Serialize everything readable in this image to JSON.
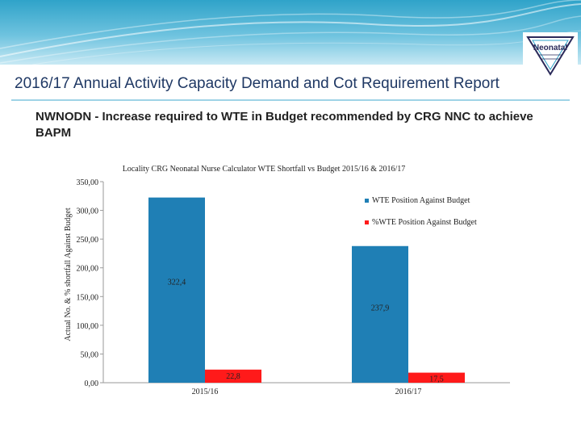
{
  "slide": {
    "title": "2016/17 Annual Activity Capacity Demand and Cot Requirement Report",
    "subtitle": "NWNODN - Increase required to WTE in Budget recommended by CRG NNC to achieve BAPM"
  },
  "logo": {
    "icon": "neonatal-network-logo",
    "text": "Neonatal"
  },
  "colors": {
    "header": "#2fa3c9",
    "series_wte": "#1f7fb5",
    "series_pct": "#ff1a1a",
    "title_text": "#1f3864"
  },
  "chart_data": {
    "type": "bar",
    "title": "Locality CRG Neonatal Nurse Calculator WTE Shortfall vs Budget 2015/16 & 2016/17",
    "ylabel": "Actual No. & % shortfall Against Budget",
    "xlabel": "",
    "ylim": [
      0,
      350
    ],
    "yticks": [
      0,
      50,
      100,
      150,
      200,
      250,
      300,
      350
    ],
    "ytick_labels": [
      "0,00",
      "50,00",
      "100,00",
      "150,00",
      "200,00",
      "250,00",
      "300,00",
      "350,00"
    ],
    "categories": [
      "2015/16",
      "2016/17"
    ],
    "series": [
      {
        "name": "WTE Position Against Budget",
        "values": [
          322.4,
          237.9
        ],
        "labels": [
          "322,4",
          "237,9"
        ],
        "color": "#1f7fb5"
      },
      {
        "name": "%WTE Position Against Budget",
        "values": [
          22.8,
          17.5
        ],
        "labels": [
          "22,8",
          "17,5"
        ],
        "color": "#ff1a1a"
      }
    ],
    "legend": "right",
    "grid": false
  }
}
